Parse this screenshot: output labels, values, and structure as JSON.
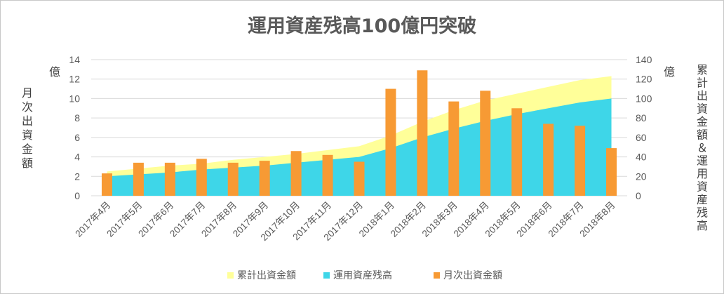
{
  "chart_data": {
    "type": "bar",
    "title": "運用資産残高100億円突破",
    "categories": [
      "2017年4月",
      "2017年5月",
      "2017年6月",
      "2017年7月",
      "2017年8月",
      "2017年9月",
      "2017年10月",
      "2017年11月",
      "2017年12月",
      "2018年1月",
      "2018年2月",
      "2018年3月",
      "2018年4月",
      "2018年5月",
      "2018年6月",
      "2018年7月",
      "2018年8月"
    ],
    "y_left": {
      "label": "月次出資金額",
      "unit": "億",
      "range": [
        0,
        14
      ],
      "ticks": [
        "0",
        "2",
        "4",
        "6",
        "8",
        "10",
        "12",
        "14"
      ]
    },
    "y_right": {
      "label": "累計出資金額＆運用資産残高",
      "unit": "億",
      "range": [
        0,
        140
      ],
      "ticks": [
        "0",
        "20",
        "40",
        "60",
        "80",
        "100",
        "120",
        "140"
      ]
    },
    "grid": true,
    "legend_position": "bottom",
    "series": [
      {
        "name": "累計出資金額",
        "type": "area",
        "axis": "right",
        "color": "#ffff99",
        "values": [
          25,
          28,
          31,
          33,
          37,
          40,
          43,
          47,
          51,
          62,
          76,
          88,
          98,
          105,
          112,
          119,
          123
        ]
      },
      {
        "name": "運用資産残高",
        "type": "area",
        "axis": "right",
        "color": "#3ed6e8",
        "values": [
          20,
          22,
          24,
          27,
          29,
          31,
          34,
          37,
          40,
          49,
          60,
          69,
          77,
          84,
          90,
          96,
          100
        ]
      },
      {
        "name": "月次出資金額",
        "type": "bar",
        "axis": "left",
        "color": "#f79a34",
        "values": [
          2.3,
          3.4,
          3.4,
          3.8,
          3.4,
          3.6,
          4.6,
          4.2,
          3.5,
          11.0,
          12.9,
          9.7,
          10.8,
          9.0,
          7.4,
          7.2,
          4.9
        ]
      }
    ]
  }
}
